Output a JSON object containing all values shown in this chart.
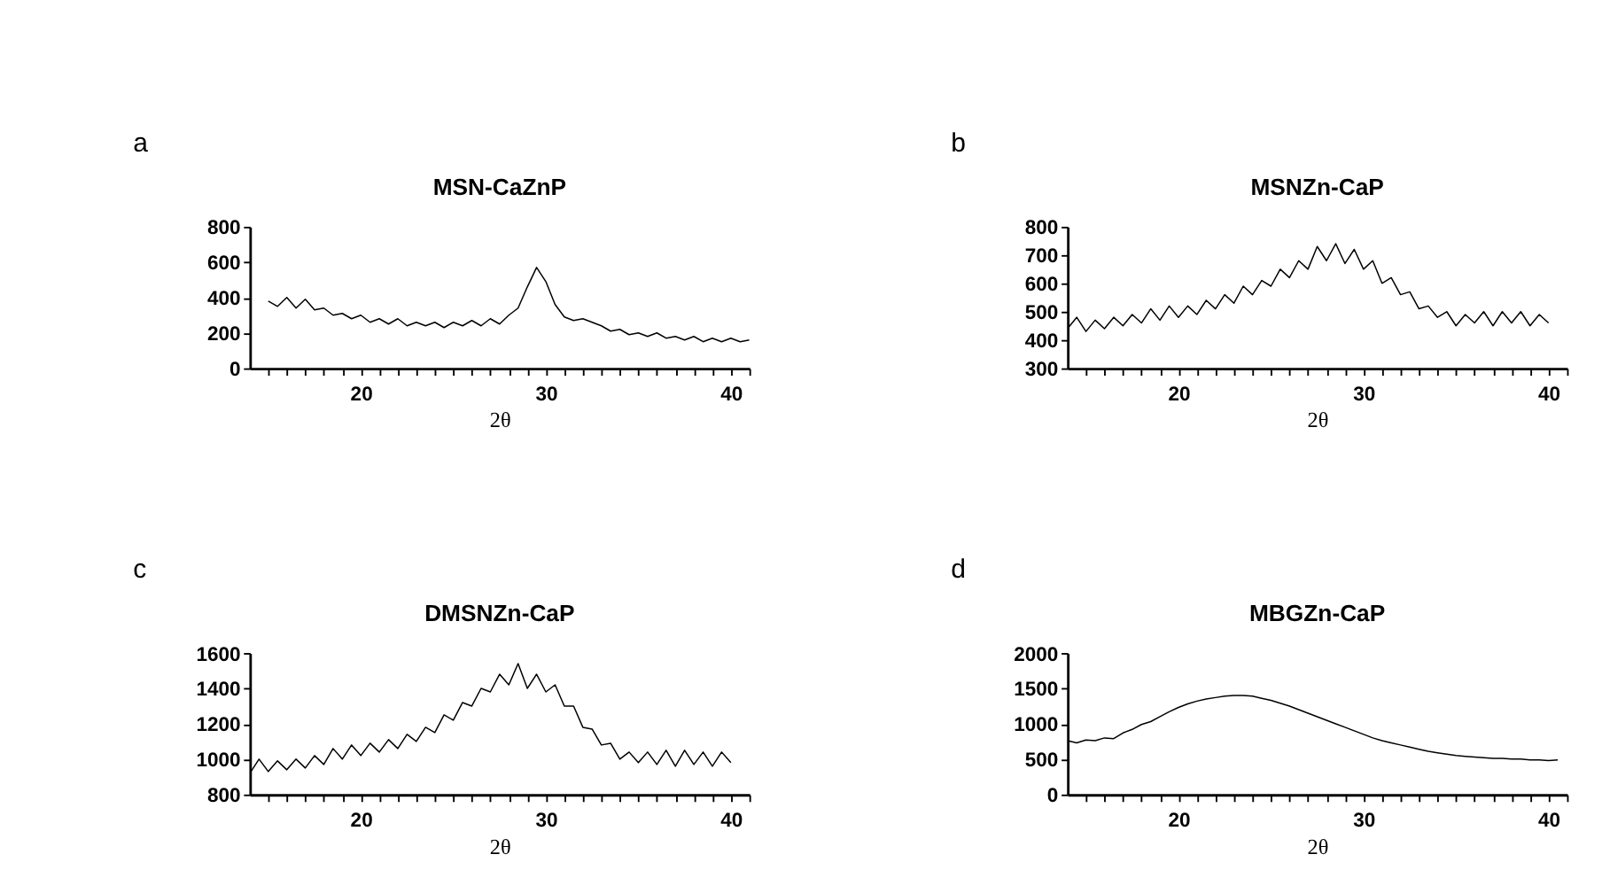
{
  "chart_data": [
    {
      "type": "line",
      "title": "MSN-CaZnP",
      "xlabel": "2θ",
      "annotations": [
        "a"
      ],
      "grid": false,
      "xlim": [
        14,
        41
      ],
      "ylim": [
        0,
        800
      ],
      "yticks": [
        0,
        200,
        400,
        600,
        800
      ],
      "xticks": [
        {
          "value": 15,
          "label": null
        },
        {
          "value": 16,
          "label": null
        },
        {
          "value": 17,
          "label": null
        },
        {
          "value": 18,
          "label": null
        },
        {
          "value": 19,
          "label": null
        },
        20,
        {
          "value": 21,
          "label": null
        },
        {
          "value": 22,
          "label": null
        },
        {
          "value": 23,
          "label": null
        },
        {
          "value": 24,
          "label": null
        },
        {
          "value": 25,
          "label": null
        },
        {
          "value": 26,
          "label": null
        },
        {
          "value": 27,
          "label": null
        },
        {
          "value": 28,
          "label": null
        },
        {
          "value": 29,
          "label": null
        },
        30,
        {
          "value": 31,
          "label": null
        },
        {
          "value": 32,
          "label": null
        },
        {
          "value": 33,
          "label": null
        },
        {
          "value": 34,
          "label": null
        },
        {
          "value": 35,
          "label": null
        },
        {
          "value": 36,
          "label": null
        },
        {
          "value": 37,
          "label": null
        },
        {
          "value": 38,
          "label": null
        },
        {
          "value": 39,
          "label": null
        },
        40,
        {
          "value": 41,
          "label": null
        }
      ],
      "series": [
        {
          "color": "#000000",
          "x": [
            15,
            15.5,
            16,
            16.5,
            17,
            17.5,
            18,
            18.5,
            19,
            19.5,
            20,
            20.5,
            21,
            21.5,
            22,
            22.5,
            23,
            23.5,
            24,
            24.5,
            25,
            25.5,
            26,
            26.5,
            27,
            27.5,
            28,
            28.5,
            29,
            29.5,
            30,
            30.5,
            31,
            31.5,
            32,
            32.5,
            33,
            33.5,
            34,
            34.5,
            35,
            35.5,
            36,
            36.5,
            37,
            37.5,
            38,
            38.5,
            39,
            39.5,
            40,
            40.5,
            41
          ],
          "values": [
            380,
            350,
            400,
            340,
            390,
            330,
            340,
            300,
            310,
            280,
            300,
            260,
            280,
            250,
            280,
            240,
            260,
            240,
            260,
            230,
            260,
            240,
            270,
            240,
            280,
            250,
            300,
            340,
            460,
            570,
            490,
            360,
            290,
            270,
            280,
            260,
            240,
            210,
            220,
            190,
            200,
            180,
            200,
            170,
            180,
            160,
            180,
            150,
            170,
            150,
            170,
            150,
            160
          ]
        }
      ]
    },
    {
      "type": "line",
      "title": "MSNZn-CaP",
      "xlabel": "2θ",
      "annotations": [
        "b"
      ],
      "grid": false,
      "xlim": [
        14,
        41
      ],
      "ylim": [
        300,
        800
      ],
      "yticks": [
        300,
        400,
        500,
        600,
        700,
        800
      ],
      "xticks": [
        {
          "value": 15,
          "label": null
        },
        {
          "value": 16,
          "label": null
        },
        {
          "value": 17,
          "label": null
        },
        {
          "value": 18,
          "label": null
        },
        {
          "value": 19,
          "label": null
        },
        20,
        {
          "value": 21,
          "label": null
        },
        {
          "value": 22,
          "label": null
        },
        {
          "value": 23,
          "label": null
        },
        {
          "value": 24,
          "label": null
        },
        {
          "value": 25,
          "label": null
        },
        {
          "value": 26,
          "label": null
        },
        {
          "value": 27,
          "label": null
        },
        {
          "value": 28,
          "label": null
        },
        {
          "value": 29,
          "label": null
        },
        30,
        {
          "value": 31,
          "label": null
        },
        {
          "value": 32,
          "label": null
        },
        {
          "value": 33,
          "label": null
        },
        {
          "value": 34,
          "label": null
        },
        {
          "value": 35,
          "label": null
        },
        {
          "value": 36,
          "label": null
        },
        {
          "value": 37,
          "label": null
        },
        {
          "value": 38,
          "label": null
        },
        {
          "value": 39,
          "label": null
        },
        40,
        {
          "value": 41,
          "label": null
        }
      ],
      "series": [
        {
          "color": "#000000",
          "x": [
            14,
            14.5,
            15,
            15.5,
            16,
            16.5,
            17,
            17.5,
            18,
            18.5,
            19,
            19.5,
            20,
            20.5,
            21,
            21.5,
            22,
            22.5,
            23,
            23.5,
            24,
            24.5,
            25,
            25.5,
            26,
            26.5,
            27,
            27.5,
            28,
            28.5,
            29,
            29.5,
            30,
            30.5,
            31,
            31.5,
            32,
            32.5,
            33,
            33.5,
            34,
            34.5,
            35,
            35.5,
            36,
            36.5,
            37,
            37.5,
            38,
            38.5,
            39,
            39.5,
            40
          ],
          "values": [
            440,
            480,
            430,
            470,
            440,
            480,
            450,
            490,
            460,
            510,
            470,
            520,
            480,
            520,
            490,
            540,
            510,
            560,
            530,
            590,
            560,
            610,
            590,
            650,
            620,
            680,
            650,
            730,
            680,
            740,
            670,
            720,
            650,
            680,
            600,
            620,
            560,
            570,
            510,
            520,
            480,
            500,
            450,
            490,
            460,
            500,
            450,
            500,
            460,
            500,
            450,
            490,
            460
          ]
        }
      ]
    },
    {
      "type": "line",
      "title": "DMSNZn-CaP",
      "xlabel": "2θ",
      "annotations": [
        "c"
      ],
      "grid": false,
      "xlim": [
        14,
        41
      ],
      "ylim": [
        800,
        1600
      ],
      "yticks": [
        800,
        1000,
        1200,
        1400,
        1600
      ],
      "xticks": [
        {
          "value": 15,
          "label": null
        },
        {
          "value": 16,
          "label": null
        },
        {
          "value": 17,
          "label": null
        },
        {
          "value": 18,
          "label": null
        },
        {
          "value": 19,
          "label": null
        },
        20,
        {
          "value": 21,
          "label": null
        },
        {
          "value": 22,
          "label": null
        },
        {
          "value": 23,
          "label": null
        },
        {
          "value": 24,
          "label": null
        },
        {
          "value": 25,
          "label": null
        },
        {
          "value": 26,
          "label": null
        },
        {
          "value": 27,
          "label": null
        },
        {
          "value": 28,
          "label": null
        },
        {
          "value": 29,
          "label": null
        },
        30,
        {
          "value": 31,
          "label": null
        },
        {
          "value": 32,
          "label": null
        },
        {
          "value": 33,
          "label": null
        },
        {
          "value": 34,
          "label": null
        },
        {
          "value": 35,
          "label": null
        },
        {
          "value": 36,
          "label": null
        },
        {
          "value": 37,
          "label": null
        },
        {
          "value": 38,
          "label": null
        },
        {
          "value": 39,
          "label": null
        },
        40,
        {
          "value": 41,
          "label": null
        }
      ],
      "series": [
        {
          "color": "#000000",
          "x": [
            14,
            14.5,
            15,
            15.5,
            16,
            16.5,
            17,
            17.5,
            18,
            18.5,
            19,
            19.5,
            20,
            20.5,
            21,
            21.5,
            22,
            22.5,
            23,
            23.5,
            24,
            24.5,
            25,
            25.5,
            26,
            26.5,
            27,
            27.5,
            28,
            28.5,
            29,
            29.5,
            30,
            30.5,
            31,
            31.5,
            32,
            32.5,
            33,
            33.5,
            34,
            34.5,
            35,
            35.5,
            36,
            36.5,
            37,
            37.5,
            38,
            38.5,
            39,
            39.5,
            40
          ],
          "values": [
            920,
            1000,
            930,
            990,
            940,
            1000,
            950,
            1020,
            970,
            1060,
            1000,
            1080,
            1020,
            1090,
            1040,
            1110,
            1060,
            1140,
            1100,
            1180,
            1150,
            1250,
            1220,
            1320,
            1300,
            1400,
            1380,
            1480,
            1420,
            1540,
            1400,
            1480,
            1380,
            1420,
            1300,
            1300,
            1180,
            1170,
            1080,
            1090,
            1000,
            1040,
            980,
            1040,
            970,
            1050,
            960,
            1050,
            970,
            1040,
            960,
            1040,
            980
          ]
        }
      ]
    },
    {
      "type": "line",
      "title": "MBGZn-CaP",
      "xlabel": "2θ",
      "annotations": [
        "d"
      ],
      "grid": false,
      "xlim": [
        14,
        41
      ],
      "ylim": [
        0,
        2000
      ],
      "yticks": [
        0,
        500,
        1000,
        1500,
        2000
      ],
      "xticks": [
        {
          "value": 15,
          "label": null
        },
        {
          "value": 16,
          "label": null
        },
        {
          "value": 17,
          "label": null
        },
        {
          "value": 18,
          "label": null
        },
        {
          "value": 19,
          "label": null
        },
        20,
        {
          "value": 21,
          "label": null
        },
        {
          "value": 22,
          "label": null
        },
        {
          "value": 23,
          "label": null
        },
        {
          "value": 24,
          "label": null
        },
        {
          "value": 25,
          "label": null
        },
        {
          "value": 26,
          "label": null
        },
        {
          "value": 27,
          "label": null
        },
        {
          "value": 28,
          "label": null
        },
        {
          "value": 29,
          "label": null
        },
        30,
        {
          "value": 31,
          "label": null
        },
        {
          "value": 32,
          "label": null
        },
        {
          "value": 33,
          "label": null
        },
        {
          "value": 34,
          "label": null
        },
        {
          "value": 35,
          "label": null
        },
        {
          "value": 36,
          "label": null
        },
        {
          "value": 37,
          "label": null
        },
        {
          "value": 38,
          "label": null
        },
        {
          "value": 39,
          "label": null
        },
        40,
        {
          "value": 41,
          "label": null
        }
      ],
      "series": [
        {
          "color": "#000000",
          "x": [
            14,
            14.5,
            15,
            15.5,
            16,
            16.5,
            17,
            17.5,
            18,
            18.5,
            19,
            19.5,
            20,
            20.5,
            21,
            21.5,
            22,
            22.5,
            23,
            23.5,
            24,
            24.5,
            25,
            25.5,
            26,
            26.5,
            27,
            27.5,
            28,
            28.5,
            29,
            29.5,
            30,
            30.5,
            31,
            31.5,
            32,
            32.5,
            33,
            33.5,
            34,
            34.5,
            35,
            35.5,
            36,
            36.5,
            37,
            37.5,
            38,
            38.5,
            39,
            39.5,
            40,
            40.5
          ],
          "values": [
            760,
            730,
            770,
            760,
            800,
            790,
            870,
            920,
            990,
            1030,
            1100,
            1170,
            1230,
            1280,
            1320,
            1350,
            1370,
            1390,
            1400,
            1400,
            1390,
            1360,
            1330,
            1290,
            1250,
            1200,
            1150,
            1100,
            1050,
            1000,
            950,
            900,
            850,
            800,
            760,
            730,
            700,
            670,
            640,
            610,
            590,
            570,
            550,
            540,
            530,
            520,
            510,
            510,
            500,
            500,
            490,
            490,
            480,
            490
          ]
        }
      ]
    }
  ]
}
